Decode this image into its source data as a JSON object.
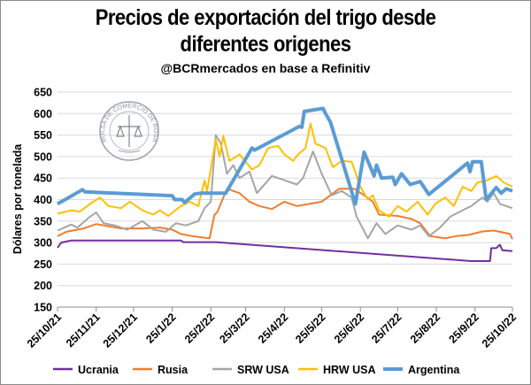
{
  "chart_data": {
    "type": "line",
    "title": [
      "Precios de exportación del trigo desde",
      "diferentes origenes"
    ],
    "subtitle": "@BCRmercados en base a Refinitiv",
    "ylabel": "Dólares por tonelada",
    "xlabel": "",
    "ylim": [
      150,
      650
    ],
    "yticks": [
      150,
      200,
      250,
      300,
      350,
      400,
      450,
      500,
      550,
      600,
      650
    ],
    "xlim": [
      "2021-10-25",
      "2022-10-25"
    ],
    "xticks": [
      "2021-10-25",
      "2021-11-25",
      "2021-12-25",
      "2022-01-25",
      "2022-02-25",
      "2022-03-25",
      "2022-04-25",
      "2022-05-25",
      "2022-06-25",
      "2022-07-25",
      "2022-08-25",
      "2022-09-25",
      "2022-10-25"
    ],
    "xtick_labels": [
      "25/10/21",
      "25/11/21",
      "25/12/21",
      "25/1/22",
      "25/2/22",
      "25/3/22",
      "25/4/22",
      "25/5/22",
      "25/6/22",
      "25/7/22",
      "25/8/22",
      "25/9/22",
      "25/10/22"
    ],
    "grid": "horizontal",
    "legend": "bottom",
    "watermark": "BOLSA DE COMERCIO DE ROSARIO",
    "series": [
      {
        "name": "Ucrania",
        "color": "#7030A0",
        "width": 2,
        "points": [
          [
            "2021-10-25",
            288
          ],
          [
            "2021-10-28",
            300
          ],
          [
            "2021-11-05",
            305
          ],
          [
            "2022-02-01",
            305
          ],
          [
            "2022-02-03",
            301
          ],
          [
            "2022-03-01",
            301
          ],
          [
            "2022-09-22",
            257
          ],
          [
            "2022-10-07",
            257
          ],
          [
            "2022-10-08",
            287
          ],
          [
            "2022-10-12",
            287
          ],
          [
            "2022-10-15",
            295
          ],
          [
            "2022-10-17",
            282
          ],
          [
            "2022-10-25",
            280
          ]
        ]
      },
      {
        "name": "Rusia",
        "color": "#ED7D31",
        "width": 2,
        "points": [
          [
            "2021-10-25",
            315
          ],
          [
            "2021-11-01",
            325
          ],
          [
            "2021-11-15",
            333
          ],
          [
            "2021-11-25",
            343
          ],
          [
            "2021-12-05",
            338
          ],
          [
            "2021-12-15",
            333
          ],
          [
            "2022-01-01",
            333
          ],
          [
            "2022-01-15",
            335
          ],
          [
            "2022-01-25",
            330
          ],
          [
            "2022-02-01",
            320
          ],
          [
            "2022-02-10",
            315
          ],
          [
            "2022-02-18",
            312
          ],
          [
            "2022-02-24",
            310
          ],
          [
            "2022-02-28",
            365
          ],
          [
            "2022-03-02",
            370
          ],
          [
            "2022-03-10",
            425
          ],
          [
            "2022-03-20",
            415
          ],
          [
            "2022-03-28",
            395
          ],
          [
            "2022-04-05",
            385
          ],
          [
            "2022-04-15",
            378
          ],
          [
            "2022-04-25",
            395
          ],
          [
            "2022-05-05",
            385
          ],
          [
            "2022-05-15",
            390
          ],
          [
            "2022-05-25",
            395
          ],
          [
            "2022-06-01",
            410
          ],
          [
            "2022-06-08",
            425
          ],
          [
            "2022-06-20",
            425
          ],
          [
            "2022-06-28",
            410
          ],
          [
            "2022-07-05",
            395
          ],
          [
            "2022-07-10",
            365
          ],
          [
            "2022-07-25",
            362
          ],
          [
            "2022-08-05",
            355
          ],
          [
            "2022-08-12",
            345
          ],
          [
            "2022-08-20",
            315
          ],
          [
            "2022-09-01",
            310
          ],
          [
            "2022-09-10",
            315
          ],
          [
            "2022-09-20",
            318
          ],
          [
            "2022-10-01",
            326
          ],
          [
            "2022-10-10",
            328
          ],
          [
            "2022-10-20",
            322
          ],
          [
            "2022-10-23",
            320
          ],
          [
            "2022-10-25",
            308
          ]
        ]
      },
      {
        "name": "SRW USA",
        "color": "#A5A5A5",
        "width": 2,
        "points": [
          [
            "2021-10-25",
            328
          ],
          [
            "2021-11-05",
            342
          ],
          [
            "2021-11-10",
            335
          ],
          [
            "2021-11-20",
            360
          ],
          [
            "2021-11-25",
            370
          ],
          [
            "2021-12-01",
            345
          ],
          [
            "2021-12-10",
            340
          ],
          [
            "2021-12-20",
            330
          ],
          [
            "2022-01-01",
            350
          ],
          [
            "2022-01-10",
            330
          ],
          [
            "2022-01-20",
            325
          ],
          [
            "2022-01-28",
            345
          ],
          [
            "2022-02-05",
            340
          ],
          [
            "2022-02-15",
            350
          ],
          [
            "2022-02-20",
            380
          ],
          [
            "2022-02-25",
            395
          ],
          [
            "2022-03-01",
            550
          ],
          [
            "2022-03-05",
            530
          ],
          [
            "2022-03-10",
            460
          ],
          [
            "2022-03-15",
            480
          ],
          [
            "2022-03-20",
            450
          ],
          [
            "2022-03-28",
            465
          ],
          [
            "2022-04-03",
            415
          ],
          [
            "2022-04-15",
            455
          ],
          [
            "2022-04-25",
            445
          ],
          [
            "2022-05-05",
            435
          ],
          [
            "2022-05-10",
            450
          ],
          [
            "2022-05-18",
            512
          ],
          [
            "2022-05-25",
            460
          ],
          [
            "2022-06-02",
            410
          ],
          [
            "2022-06-10",
            420
          ],
          [
            "2022-06-18",
            405
          ],
          [
            "2022-06-22",
            360
          ],
          [
            "2022-07-01",
            310
          ],
          [
            "2022-07-08",
            345
          ],
          [
            "2022-07-15",
            320
          ],
          [
            "2022-07-25",
            340
          ],
          [
            "2022-08-05",
            330
          ],
          [
            "2022-08-12",
            340
          ],
          [
            "2022-08-19",
            315
          ],
          [
            "2022-08-28",
            335
          ],
          [
            "2022-09-05",
            360
          ],
          [
            "2022-09-15",
            375
          ],
          [
            "2022-09-22",
            385
          ],
          [
            "2022-10-01",
            405
          ],
          [
            "2022-10-05",
            395
          ],
          [
            "2022-10-10",
            415
          ],
          [
            "2022-10-15",
            390
          ],
          [
            "2022-10-25",
            380
          ]
        ]
      },
      {
        "name": "HRW USA",
        "color": "#FFC000",
        "width": 2,
        "points": [
          [
            "2021-10-25",
            367
          ],
          [
            "2021-11-05",
            375
          ],
          [
            "2021-11-12",
            372
          ],
          [
            "2021-11-20",
            390
          ],
          [
            "2021-11-28",
            405
          ],
          [
            "2021-12-05",
            385
          ],
          [
            "2021-12-15",
            380
          ],
          [
            "2021-12-22",
            395
          ],
          [
            "2022-01-01",
            375
          ],
          [
            "2022-01-10",
            365
          ],
          [
            "2022-01-15",
            375
          ],
          [
            "2022-01-22",
            362
          ],
          [
            "2022-02-01",
            385
          ],
          [
            "2022-02-08",
            395
          ],
          [
            "2022-02-15",
            385
          ],
          [
            "2022-02-20",
            445
          ],
          [
            "2022-02-22",
            420
          ],
          [
            "2022-03-01",
            540
          ],
          [
            "2022-03-04",
            500
          ],
          [
            "2022-03-07",
            548
          ],
          [
            "2022-03-12",
            490
          ],
          [
            "2022-03-20",
            505
          ],
          [
            "2022-03-30",
            470
          ],
          [
            "2022-04-05",
            480
          ],
          [
            "2022-04-12",
            520
          ],
          [
            "2022-04-20",
            525
          ],
          [
            "2022-04-25",
            505
          ],
          [
            "2022-05-02",
            490
          ],
          [
            "2022-05-06",
            505
          ],
          [
            "2022-05-12",
            520
          ],
          [
            "2022-05-16",
            577
          ],
          [
            "2022-05-20",
            530
          ],
          [
            "2022-05-28",
            520
          ],
          [
            "2022-06-03",
            475
          ],
          [
            "2022-06-10",
            490
          ],
          [
            "2022-06-18",
            488
          ],
          [
            "2022-06-25",
            430
          ],
          [
            "2022-07-01",
            400
          ],
          [
            "2022-07-05",
            410
          ],
          [
            "2022-07-10",
            375
          ],
          [
            "2022-07-18",
            360
          ],
          [
            "2022-07-25",
            385
          ],
          [
            "2022-08-01",
            372
          ],
          [
            "2022-08-10",
            395
          ],
          [
            "2022-08-18",
            365
          ],
          [
            "2022-08-24",
            390
          ],
          [
            "2022-09-01",
            405
          ],
          [
            "2022-09-08",
            385
          ],
          [
            "2022-09-15",
            430
          ],
          [
            "2022-09-22",
            420
          ],
          [
            "2022-09-27",
            440
          ],
          [
            "2022-10-05",
            445
          ],
          [
            "2022-10-12",
            455
          ],
          [
            "2022-10-18",
            440
          ],
          [
            "2022-10-25",
            430
          ]
        ]
      },
      {
        "name": "Argentina",
        "color": "#5B9BD5",
        "width": 4,
        "points": [
          [
            "2021-10-25",
            390
          ],
          [
            "2021-11-14",
            423
          ],
          [
            "2021-11-16",
            418
          ],
          [
            "2022-01-25",
            409
          ],
          [
            "2022-01-27",
            400
          ],
          [
            "2022-02-02",
            400
          ],
          [
            "2022-02-04",
            393
          ],
          [
            "2022-02-12",
            413
          ],
          [
            "2022-02-17",
            415
          ],
          [
            "2022-03-09",
            415
          ],
          [
            "2022-03-30",
            520
          ],
          [
            "2022-04-01",
            515
          ],
          [
            "2022-05-07",
            570
          ],
          [
            "2022-05-09",
            568
          ],
          [
            "2022-05-11",
            605
          ],
          [
            "2022-05-26",
            612
          ],
          [
            "2022-05-28",
            600
          ],
          [
            "2022-06-01",
            580
          ],
          [
            "2022-06-21",
            390
          ],
          [
            "2022-06-28",
            510
          ],
          [
            "2022-07-01",
            490
          ],
          [
            "2022-07-06",
            455
          ],
          [
            "2022-07-08",
            480
          ],
          [
            "2022-07-12",
            450
          ],
          [
            "2022-07-21",
            452
          ],
          [
            "2022-07-23",
            435
          ],
          [
            "2022-07-28",
            460
          ],
          [
            "2022-08-04",
            435
          ],
          [
            "2022-08-12",
            442
          ],
          [
            "2022-08-19",
            412
          ],
          [
            "2022-09-19",
            485
          ],
          [
            "2022-09-21",
            465
          ],
          [
            "2022-09-23",
            488
          ],
          [
            "2022-09-30",
            488
          ],
          [
            "2022-10-04",
            400
          ],
          [
            "2022-10-12",
            428
          ],
          [
            "2022-10-16",
            415
          ],
          [
            "2022-10-20",
            425
          ],
          [
            "2022-10-25",
            420
          ]
        ]
      }
    ]
  }
}
